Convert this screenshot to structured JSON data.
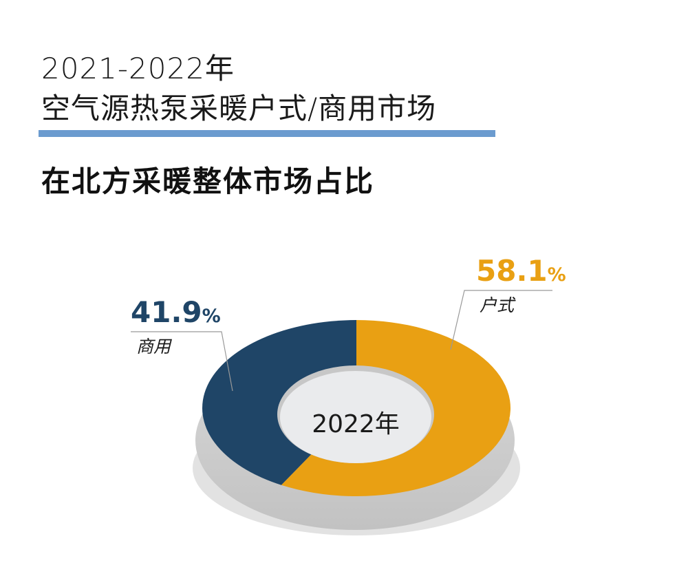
{
  "header": {
    "title_line1": "2021-2022年",
    "title_line2": "空气源热泵采暖户式/商用市场",
    "subtitle": "在北方采暖整体市场占比"
  },
  "colors": {
    "accent_bar": "#6b9bcf",
    "residential": "#e9a013",
    "commercial": "#1f4567",
    "center": "#eaebed"
  },
  "chart_data": {
    "type": "pie",
    "title": "在北方采暖整体市场占比",
    "center_label": "2022年",
    "donut": true,
    "slices": [
      {
        "label": "户式",
        "value": 58.1,
        "display": "58.1",
        "unit": "%",
        "color": "#e9a013"
      },
      {
        "label": "商用",
        "value": 41.9,
        "display": "41.9",
        "unit": "%",
        "color": "#1f4567"
      }
    ]
  }
}
